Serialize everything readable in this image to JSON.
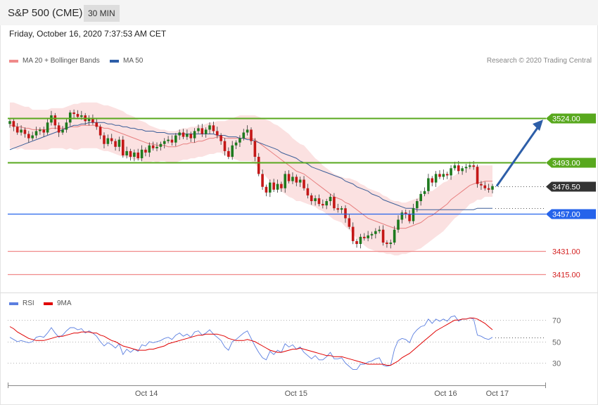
{
  "header": {
    "symbol": "S&P 500 (CME)",
    "timeframe": "30 MIN"
  },
  "datetime": "Friday, October 16, 2020 7:37:53 AM CET",
  "credit": "Research © 2020 Trading Central",
  "colors": {
    "up": "#1e7a1e",
    "down": "#c41717",
    "band": "#fadcdc",
    "ma20": "#e88080",
    "ma50": "#3d5f99",
    "resistance": "#58a81e",
    "support": "#2563eb",
    "target": "#f08a8a",
    "rsi": "#5b7fe0",
    "rsi_ma": "#e00000",
    "arrow": "#2d5ea8"
  },
  "chart_data": [
    {
      "type": "candlestick",
      "legend": [
        {
          "label": "MA 20 + Bollinger Bands",
          "color": "#f08a8a"
        },
        {
          "label": "MA 50",
          "color": "#2d5ea8"
        }
      ],
      "x_ticks": [
        "Oct 14",
        "Oct 15",
        "Oct 16",
        "Oct 17"
      ],
      "ylim": [
        3405,
        3560
      ],
      "levels": [
        {
          "value": 3524.0,
          "label": "3524.00",
          "kind": "resistance"
        },
        {
          "value": 3493.0,
          "label": "3493.00",
          "kind": "resistance"
        },
        {
          "value": 3476.5,
          "label": "3476.50",
          "kind": "last"
        },
        {
          "value": 3457.0,
          "label": "3457.00",
          "kind": "support"
        },
        {
          "value": 3431.0,
          "label": "3431.00",
          "kind": "target"
        },
        {
          "value": 3415.0,
          "label": "3415.00",
          "kind": "target"
        }
      ],
      "close": [
        3522,
        3518,
        3514,
        3516,
        3513,
        3510,
        3512,
        3515,
        3516,
        3514,
        3521,
        3526,
        3519,
        3514,
        3516,
        3521,
        3528,
        3527,
        3525,
        3526,
        3522,
        3524,
        3521,
        3518,
        3512,
        3506,
        3510,
        3508,
        3504,
        3509,
        3498,
        3501,
        3497,
        3500,
        3496,
        3502,
        3500,
        3505,
        3503,
        3504,
        3506,
        3508,
        3509,
        3507,
        3512,
        3514,
        3511,
        3513,
        3510,
        3515,
        3517,
        3513,
        3516,
        3519,
        3515,
        3512,
        3508,
        3501,
        3497,
        3505,
        3507,
        3510,
        3514,
        3516,
        3508,
        3497,
        3485,
        3476,
        3472,
        3479,
        3474,
        3478,
        3475,
        3485,
        3480,
        3483,
        3479,
        3481,
        3475,
        3470,
        3466,
        3468,
        3464,
        3463,
        3466,
        3469,
        3461,
        3460,
        3461,
        3454,
        3448,
        3438,
        3436,
        3441,
        3440,
        3442,
        3443,
        3445,
        3446,
        3437,
        3436,
        3437,
        3446,
        3453,
        3458,
        3457,
        3452,
        3461,
        3466,
        3471,
        3473,
        3482,
        3479,
        3485,
        3483,
        3485,
        3484,
        3489,
        3491,
        3487,
        3489,
        3490,
        3491,
        3490,
        3478,
        3477,
        3475,
        3474,
        3476.5
      ],
      "ma20": [
        3519,
        3519,
        3518,
        3518,
        3517,
        3517,
        3516,
        3516,
        3516,
        3516,
        3516,
        3517,
        3517,
        3517,
        3517,
        3517,
        3518,
        3518,
        3518,
        3519,
        3519,
        3519,
        3519,
        3519,
        3518,
        3517,
        3517,
        3516,
        3515,
        3514,
        3513,
        3512,
        3511,
        3510,
        3509,
        3508,
        3507,
        3506,
        3506,
        3505,
        3505,
        3505,
        3504,
        3504,
        3504,
        3505,
        3506,
        3506,
        3507,
        3507,
        3508,
        3508,
        3509,
        3510,
        3510,
        3511,
        3511,
        3510,
        3510,
        3510,
        3510,
        3510,
        3510,
        3510,
        3510,
        3509,
        3507,
        3505,
        3503,
        3501,
        3499,
        3497,
        3495,
        3493,
        3491,
        3489,
        3487,
        3486,
        3485,
        3483,
        3481,
        3479,
        3477,
        3475,
        3473,
        3471,
        3469,
        3468,
        3467,
        3465,
        3464,
        3462,
        3460,
        3458,
        3456,
        3454,
        3453,
        3452,
        3451,
        3450,
        3449,
        3448,
        3447,
        3447,
        3447,
        3447,
        3448,
        3449,
        3450,
        3451,
        3453,
        3455,
        3456,
        3458,
        3460,
        3462,
        3464,
        3467,
        3469,
        3471,
        3473,
        3475,
        3477,
        3478,
        3479,
        3479,
        3480,
        3480,
        3480
      ],
      "ma50": [
        3502,
        3503,
        3504,
        3505,
        3506,
        3507,
        3508,
        3509,
        3510,
        3511,
        3512,
        3513,
        3514,
        3515,
        3516,
        3517,
        3518,
        3519,
        3519,
        3520,
        3520,
        3521,
        3521,
        3521,
        3521,
        3521,
        3520,
        3520,
        3519,
        3519,
        3518,
        3518,
        3517,
        3517,
        3516,
        3516,
        3515,
        3515,
        3515,
        3514,
        3514,
        3514,
        3513,
        3513,
        3513,
        3513,
        3513,
        3513,
        3513,
        3513,
        3513,
        3513,
        3513,
        3513,
        3513,
        3512,
        3512,
        3512,
        3511,
        3511,
        3511,
        3510,
        3510,
        3509,
        3509,
        3508,
        3507,
        3506,
        3505,
        3504,
        3503,
        3502,
        3500,
        3499,
        3498,
        3497,
        3496,
        3494,
        3493,
        3492,
        3490,
        3489,
        3488,
        3487,
        3486,
        3485,
        3484,
        3483,
        3482,
        3480,
        3479,
        3478,
        3476,
        3475,
        3474,
        3473,
        3471,
        3470,
        3469,
        3467,
        3466,
        3465,
        3464,
        3463,
        3462,
        3461,
        3461,
        3461,
        3460,
        3460,
        3460,
        3460,
        3460,
        3460,
        3460,
        3460,
        3460,
        3460,
        3460,
        3460,
        3460,
        3460,
        3460,
        3460,
        3461,
        3461,
        3461,
        3461,
        3461
      ],
      "bandwidth": [
        16,
        16,
        16,
        15,
        15,
        15,
        14,
        14,
        14,
        14,
        14,
        14,
        14,
        14,
        14,
        15,
        15,
        16,
        16,
        16,
        16,
        16,
        16,
        16,
        16,
        16,
        16,
        16,
        16,
        16,
        16,
        15,
        15,
        15,
        14,
        14,
        14,
        13,
        12,
        12,
        11,
        11,
        11,
        11,
        11,
        11,
        11,
        11,
        11,
        11,
        11,
        11,
        11,
        11,
        11,
        11,
        11,
        12,
        13,
        14,
        15,
        16,
        16,
        16,
        16,
        17,
        18,
        19,
        20,
        21,
        21,
        22,
        22,
        22,
        22,
        21,
        21,
        20,
        20,
        19,
        18,
        17,
        17,
        16,
        16,
        16,
        16,
        16,
        16,
        17,
        18,
        19,
        20,
        20,
        21,
        21,
        21,
        21,
        21,
        20,
        20,
        19,
        19,
        19,
        18,
        18,
        18,
        18,
        18,
        18,
        18,
        18,
        17,
        17,
        17,
        17,
        16,
        16,
        15,
        15,
        14,
        14,
        13,
        13,
        12,
        12,
        11,
        11,
        11
      ]
    },
    {
      "type": "line",
      "legend": [
        {
          "label": "RSI",
          "color": "#5b7fe0"
        },
        {
          "label": "9MA",
          "color": "#e00000"
        }
      ],
      "yticks": [
        30,
        50,
        70
      ],
      "ylim": [
        10,
        80
      ],
      "series": [
        {
          "name": "RSI",
          "values": [
            54,
            52,
            50,
            51,
            50,
            49,
            50,
            54,
            55,
            54,
            58,
            63,
            58,
            54,
            56,
            60,
            63,
            63,
            61,
            62,
            58,
            60,
            58,
            55,
            50,
            46,
            49,
            47,
            44,
            48,
            38,
            43,
            40,
            43,
            41,
            47,
            46,
            50,
            49,
            50,
            51,
            53,
            54,
            52,
            56,
            58,
            55,
            57,
            54,
            59,
            60,
            56,
            58,
            61,
            57,
            54,
            51,
            45,
            42,
            50,
            52,
            55,
            58,
            60,
            53,
            46,
            40,
            35,
            33,
            41,
            38,
            42,
            40,
            48,
            45,
            47,
            43,
            45,
            40,
            37,
            34,
            37,
            33,
            33,
            36,
            40,
            34,
            34,
            35,
            30,
            27,
            24,
            24,
            29,
            29,
            31,
            32,
            34,
            35,
            28,
            27,
            28,
            43,
            51,
            53,
            52,
            49,
            57,
            61,
            64,
            65,
            71,
            67,
            71,
            69,
            71,
            69,
            73,
            74,
            69,
            71,
            71,
            72,
            71,
            56,
            55,
            53,
            52,
            54
          ]
        },
        {
          "name": "9MA",
          "values": [
            64,
            62,
            59,
            57,
            55,
            53,
            52,
            51,
            51,
            51,
            52,
            53,
            54,
            55,
            55,
            56,
            57,
            58,
            58,
            59,
            59,
            59,
            58,
            58,
            56,
            55,
            53,
            51,
            50,
            48,
            46,
            45,
            44,
            43,
            42,
            42,
            42,
            43,
            43,
            44,
            45,
            46,
            48,
            49,
            50,
            51,
            52,
            53,
            54,
            55,
            56,
            56,
            57,
            57,
            57,
            57,
            56,
            55,
            53,
            52,
            51,
            51,
            51,
            52,
            51,
            50,
            48,
            46,
            44,
            42,
            41,
            40,
            40,
            41,
            42,
            43,
            43,
            44,
            43,
            42,
            41,
            40,
            39,
            38,
            37,
            37,
            36,
            36,
            36,
            35,
            34,
            33,
            32,
            31,
            30,
            29,
            29,
            29,
            29,
            29,
            28,
            28,
            30,
            32,
            35,
            37,
            39,
            42,
            45,
            48,
            51,
            54,
            57,
            60,
            62,
            64,
            66,
            68,
            70,
            70,
            71,
            71,
            72,
            72,
            71,
            69,
            67,
            64,
            61
          ]
        }
      ]
    }
  ]
}
